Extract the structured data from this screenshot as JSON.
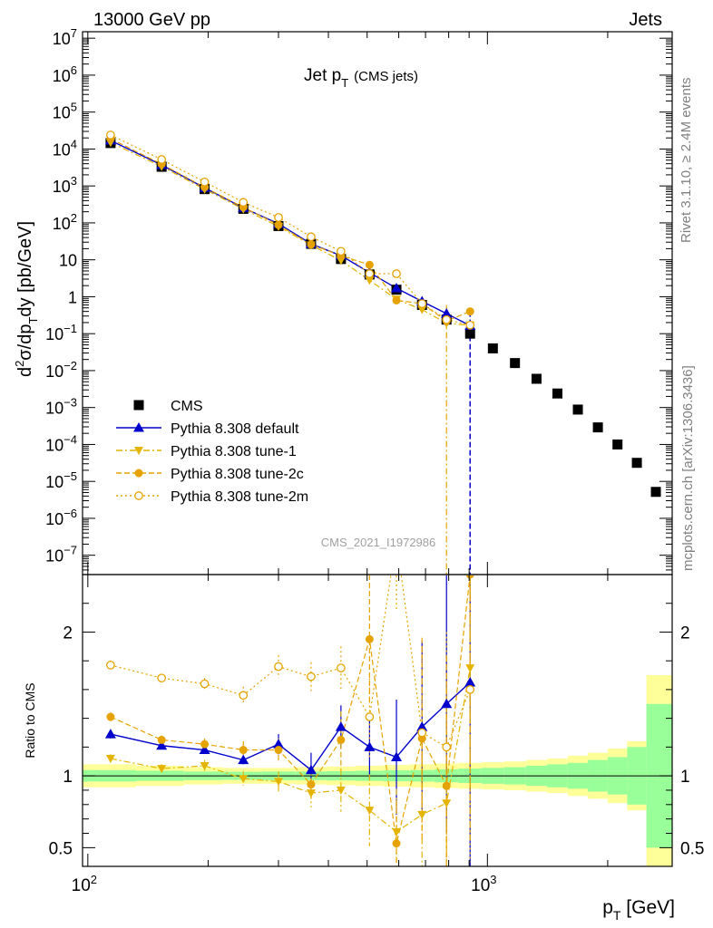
{
  "header": {
    "left": "13000 GeV pp",
    "right": "Jets",
    "side_top": "Rivet 3.1.10, ≥ 2.4M events",
    "side_bottom": "mcplots.cern.ch [arXiv:1306.3436]",
    "analysis": "CMS_2021_I1972986"
  },
  "chart_data": [
    {
      "type": "scatter",
      "panel": "main",
      "title_main": "Jet p",
      "title_sub": "T",
      "title_note": "(CMS jets)",
      "ylabel": "d²σ/dp_T dy [pb/GeV]",
      "ylabel_parts": {
        "a": "d",
        "b": "2",
        "c": "σ/dp",
        "d": "T",
        "e": "dy [pb/GeV]"
      },
      "xscale": "log",
      "yscale": "log",
      "xlim": [
        97,
        2900
      ],
      "ylim": [
        3e-08,
        15000000.0
      ],
      "legend_position": "middle-left",
      "y_tick_labels": [
        {
          "v": 10000000.0,
          "b": "10",
          "e": "7"
        },
        {
          "v": 1000000.0,
          "b": "10",
          "e": "6"
        },
        {
          "v": 100000.0,
          "b": "10",
          "e": "5"
        },
        {
          "v": 10000.0,
          "b": "10",
          "e": "4"
        },
        {
          "v": 1000.0,
          "b": "10",
          "e": "3"
        },
        {
          "v": 100.0,
          "b": "10",
          "e": "2"
        },
        {
          "v": 10,
          "b": "10",
          "e": ""
        },
        {
          "v": 1,
          "b": "1",
          "e": ""
        },
        {
          "v": 0.1,
          "b": "10",
          "e": "−1"
        },
        {
          "v": 0.01,
          "b": "10",
          "e": "−2"
        },
        {
          "v": 0.001,
          "b": "10",
          "e": "−3"
        },
        {
          "v": 0.0001,
          "b": "10",
          "e": "−4"
        },
        {
          "v": 1e-05,
          "b": "10",
          "e": "−5"
        },
        {
          "v": 1e-06,
          "b": "10",
          "e": "−6"
        },
        {
          "v": 1e-07,
          "b": "10",
          "e": "−7"
        }
      ],
      "series": [
        {
          "name": "CMS",
          "color": "#000000",
          "marker": "square",
          "x": [
            114,
            153,
            196,
            245,
            300,
            362,
            430,
            507,
            592,
            686,
            790,
            905,
            1032,
            1172,
            1327,
            1497,
            1684,
            1890,
            2116,
            2366,
            2640
          ],
          "y": [
            14500,
            3300,
            820,
            240,
            82,
            27,
            10.5,
            4,
            1.55,
            0.6,
            0.24,
            0.1,
            0.04,
            0.016,
            0.006,
            0.0024,
            0.00088,
            0.00029,
            0.0001,
            3.18e-05,
            5.2e-06
          ]
        },
        {
          "name": "Pythia 8.308 default",
          "color": "#0000cc",
          "marker": "triangle-up",
          "line": "solid",
          "x": [
            114,
            153,
            196,
            245,
            300,
            362,
            430,
            507,
            592,
            686,
            790,
            905
          ],
          "y": [
            17000,
            3700,
            890,
            255,
            95,
            27,
            13,
            4.5,
            1.7,
            0.75,
            0.35,
            0.165
          ]
        },
        {
          "name": "Pythia 8.308 tune-1",
          "color": "#e4b400",
          "marker": "triangle-down",
          "line": "dashdot",
          "x": [
            114,
            153,
            196,
            245,
            300,
            362,
            430,
            507,
            592,
            686,
            790,
            905
          ],
          "y": [
            15000,
            3350,
            810,
            235,
            80,
            25,
            9.6,
            2.8,
            0.85,
            0.45,
            0.19,
            0.17
          ]
        },
        {
          "name": "Pythia 8.308 tune-2c",
          "color": "#e6a300",
          "marker": "circle",
          "line": "dashed",
          "x": [
            114,
            153,
            196,
            245,
            300,
            362,
            430,
            507,
            592,
            686,
            790,
            905
          ],
          "y": [
            19000,
            3900,
            920,
            265,
            88,
            26,
            13,
            7.3,
            0.8,
            0.65,
            0.22,
            0.4
          ]
        },
        {
          "name": "Pythia 8.308 tune-2m",
          "color": "#e6a300",
          "marker": "open-circle",
          "line": "dotted",
          "x": [
            114,
            153,
            196,
            245,
            300,
            362,
            430,
            507,
            592,
            686,
            790,
            905
          ],
          "y": [
            24000,
            5200,
            1280,
            360,
            140,
            42,
            17,
            4.2,
            4.2,
            0.65,
            0.24,
            0.17
          ]
        }
      ]
    },
    {
      "type": "line",
      "panel": "ratio",
      "ylabel": "Ratio to CMS",
      "xlabel": "p_T [GeV]",
      "xlabel_parts": {
        "a": "p",
        "b": "T",
        "c": " [GeV]"
      },
      "xscale": "log",
      "xlim": [
        97,
        2900
      ],
      "ylim": [
        0.37,
        2.4
      ],
      "reference_line": 1,
      "y_tick_labels": [
        {
          "v": 2,
          "t": "2"
        },
        {
          "v": 1,
          "t": "1"
        },
        {
          "v": 0.5,
          "t": "0.5"
        }
      ],
      "x_tick_labels": [
        {
          "v": 100,
          "b": "10",
          "e": "2"
        },
        {
          "v": 1000,
          "b": "10",
          "e": "3"
        }
      ],
      "bands": {
        "edges": [
          97,
          132,
          174,
          218,
          272,
          330,
          395,
          468,
          548,
          638,
          737,
          846,
          967,
          1101,
          1248,
          1410,
          1588,
          1784,
          2000,
          2238,
          2500,
          2900
        ],
        "yellow_half": [
          0.08,
          0.07,
          0.06,
          0.055,
          0.055,
          0.06,
          0.065,
          0.07,
          0.075,
          0.08,
          0.085,
          0.09,
          0.095,
          0.1,
          0.11,
          0.12,
          0.14,
          0.16,
          0.19,
          0.24,
          0.7
        ],
        "green_half": [
          0.04,
          0.035,
          0.03,
          0.028,
          0.03,
          0.03,
          0.032,
          0.035,
          0.038,
          0.04,
          0.045,
          0.05,
          0.055,
          0.06,
          0.07,
          0.08,
          0.09,
          0.11,
          0.13,
          0.2,
          0.5
        ],
        "yellow_color": "#ffff99",
        "green_color": "#99ff99"
      },
      "series": [
        {
          "name": "Pythia 8.308 default",
          "color": "#0000cc",
          "marker": "triangle-up",
          "line": "solid",
          "x": [
            114,
            153,
            196,
            245,
            300,
            362,
            430,
            507,
            592,
            686,
            790,
            905
          ],
          "y": [
            1.29,
            1.21,
            1.18,
            1.11,
            1.22,
            1.04,
            1.34,
            1.2,
            1.13,
            1.34,
            1.5,
            1.65
          ],
          "err": [
            0.03,
            0.02,
            0.02,
            0.03,
            0.07,
            0.12,
            0.15,
            0.22,
            0.4,
            0.6,
            0.9,
            1.5
          ]
        },
        {
          "name": "Pythia 8.308 tune-1",
          "color": "#e4b400",
          "marker": "triangle-down",
          "line": "dashdot",
          "x": [
            114,
            153,
            196,
            245,
            300,
            362,
            430,
            507,
            592,
            686,
            790,
            905
          ],
          "y": [
            1.12,
            1.05,
            1.07,
            0.98,
            0.96,
            0.88,
            0.9,
            0.76,
            0.61,
            0.73,
            0.81,
            1.75
          ],
          "err": [
            0.03,
            0.03,
            0.04,
            0.05,
            0.07,
            0.1,
            0.15,
            0.25,
            0.3,
            0.5,
            0.8,
            1.2
          ]
        },
        {
          "name": "Pythia 8.308 tune-2c",
          "color": "#e6a300",
          "marker": "circle",
          "line": "dashed",
          "x": [
            114,
            153,
            196,
            245,
            300,
            362,
            430,
            507,
            592,
            686,
            790,
            905
          ],
          "y": [
            1.41,
            1.25,
            1.22,
            1.18,
            1.18,
            0.94,
            1.25,
            1.95,
            0.53,
            1.26,
            0.93,
            2.4
          ],
          "err": [
            0.03,
            0.03,
            0.04,
            0.06,
            0.08,
            0.1,
            0.2,
            0.45,
            0.3,
            0.7,
            0.9,
            1.5
          ]
        },
        {
          "name": "Pythia 8.308 tune-2m",
          "color": "#e6a300",
          "marker": "open-circle",
          "line": "dotted",
          "x": [
            114,
            153,
            196,
            245,
            300,
            362,
            430,
            507,
            592,
            686,
            790,
            905
          ],
          "y": [
            1.77,
            1.68,
            1.64,
            1.56,
            1.76,
            1.69,
            1.75,
            1.41,
            2.65,
            1.3,
            1.2,
            1.6
          ],
          "err": [
            0.03,
            0.03,
            0.04,
            0.06,
            0.08,
            0.1,
            0.15,
            0.3,
            0.5,
            0.6,
            0.8,
            1.2
          ]
        }
      ]
    }
  ]
}
